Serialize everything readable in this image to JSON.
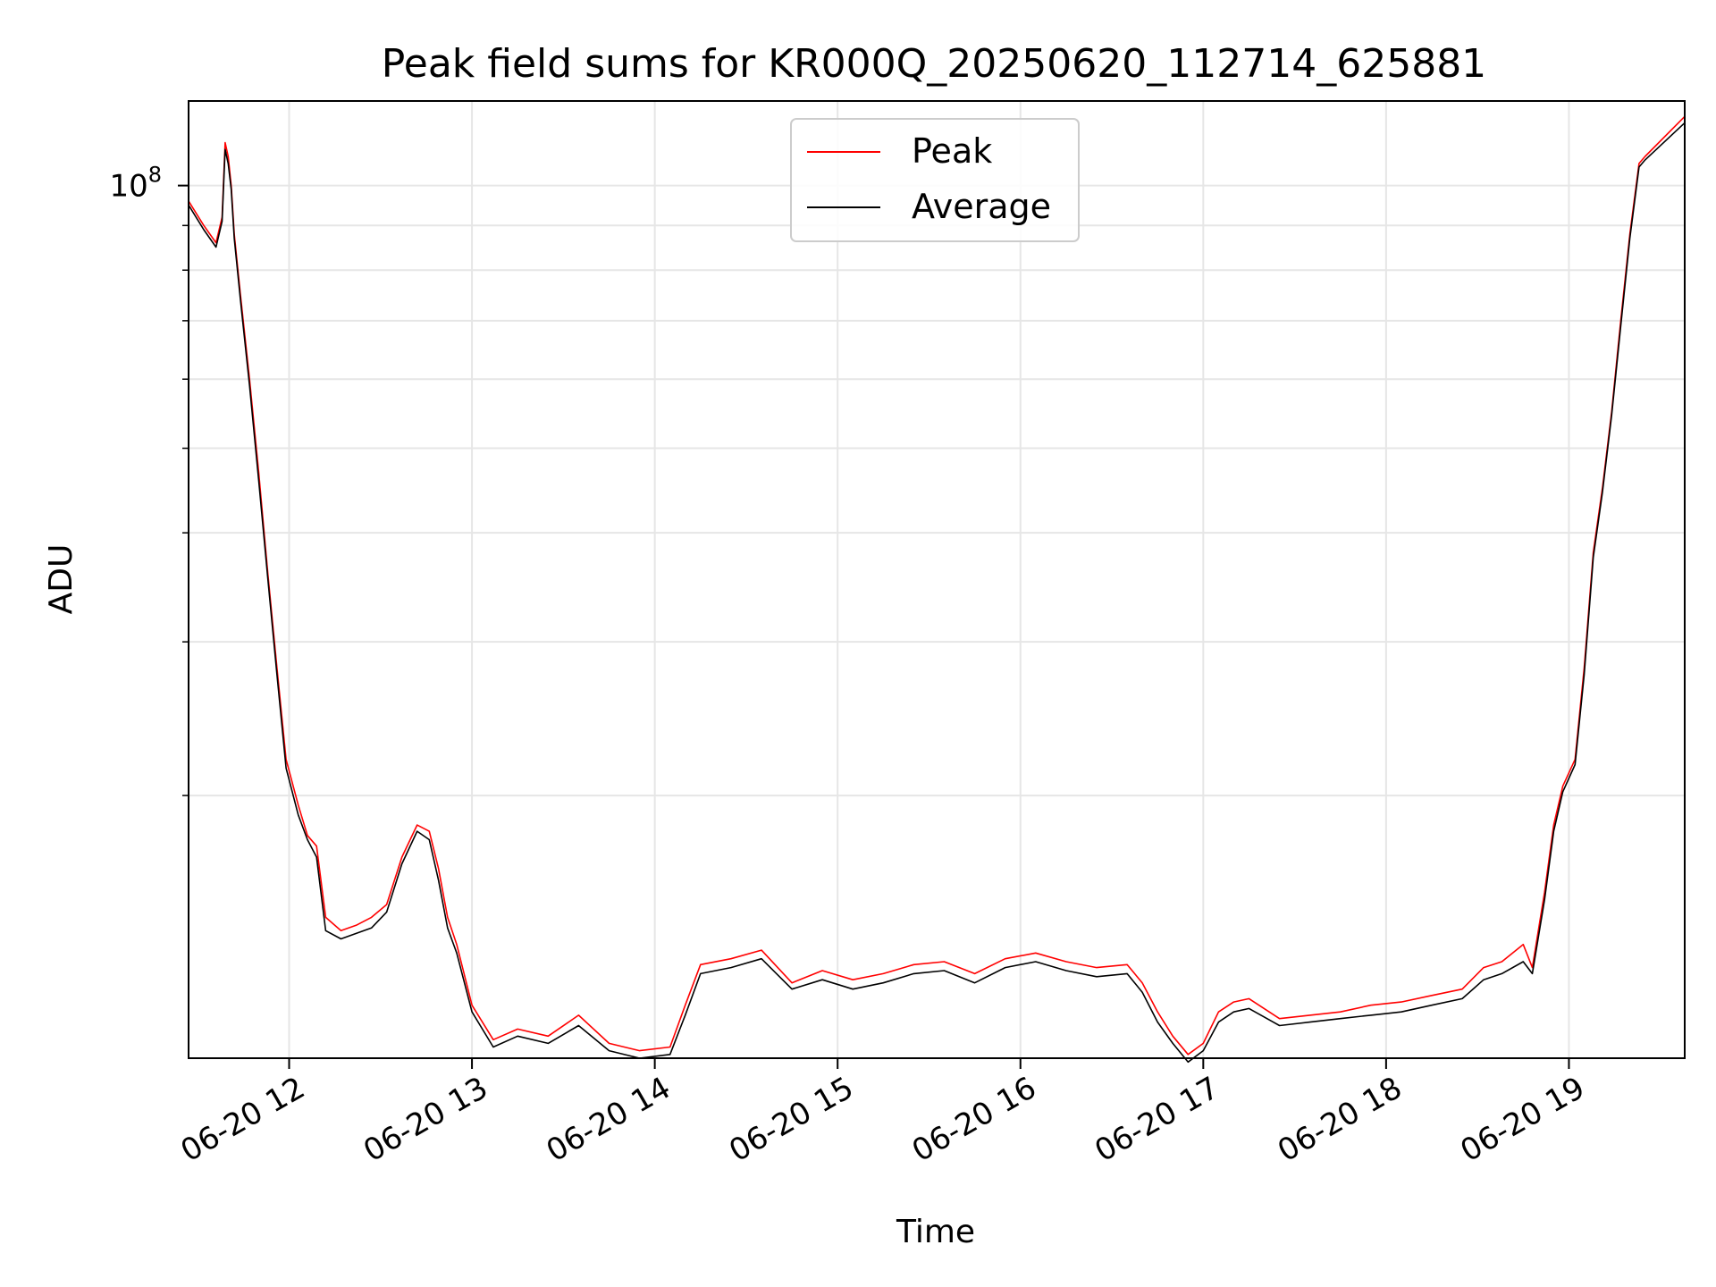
{
  "chart_data": {
    "type": "line",
    "title": "Peak field sums for KR000Q_20250620_112714_625881",
    "xlabel": "Time",
    "ylabel": "ADU",
    "y_scale": "log",
    "ytick_labels": [
      {
        "value": 100000000,
        "base": "10",
        "exponent": "8"
      }
    ],
    "xtick_labels": [
      "06-20 12",
      "06-20 13",
      "06-20 14",
      "06-20 15",
      "06-20 16",
      "06-20 17",
      "06-20 18",
      "06-20 19"
    ],
    "xlim": [
      "2025-06-20 11:27",
      "2025-06-20 19:38"
    ],
    "ylim": [
      10000000,
      125000000
    ],
    "grid": true,
    "legend_position": "top-center",
    "series": [
      {
        "name": "Peak",
        "color": "#ff0000",
        "x": [
          "2025-06-20 11:27",
          "2025-06-20 11:32",
          "2025-06-20 11:36",
          "2025-06-20 11:38",
          "2025-06-20 11:39",
          "2025-06-20 11:40",
          "2025-06-20 11:41",
          "2025-06-20 11:42",
          "2025-06-20 11:44",
          "2025-06-20 11:47",
          "2025-06-20 11:50",
          "2025-06-20 11:53",
          "2025-06-20 11:56",
          "2025-06-20 11:59",
          "2025-06-20 12:03",
          "2025-06-20 12:06",
          "2025-06-20 12:09",
          "2025-06-20 12:12",
          "2025-06-20 12:17",
          "2025-06-20 12:22",
          "2025-06-20 12:27",
          "2025-06-20 12:32",
          "2025-06-20 12:37",
          "2025-06-20 12:42",
          "2025-06-20 12:46",
          "2025-06-20 12:49",
          "2025-06-20 12:52",
          "2025-06-20 12:55",
          "2025-06-20 13:00",
          "2025-06-20 13:07",
          "2025-06-20 13:15",
          "2025-06-20 13:25",
          "2025-06-20 13:35",
          "2025-06-20 13:45",
          "2025-06-20 13:55",
          "2025-06-20 14:05",
          "2025-06-20 14:10",
          "2025-06-20 14:15",
          "2025-06-20 14:25",
          "2025-06-20 14:35",
          "2025-06-20 14:45",
          "2025-06-20 14:55",
          "2025-06-20 15:05",
          "2025-06-20 15:15",
          "2025-06-20 15:25",
          "2025-06-20 15:35",
          "2025-06-20 15:45",
          "2025-06-20 15:55",
          "2025-06-20 16:05",
          "2025-06-20 16:15",
          "2025-06-20 16:25",
          "2025-06-20 16:35",
          "2025-06-20 16:40",
          "2025-06-20 16:45",
          "2025-06-20 16:50",
          "2025-06-20 16:55",
          "2025-06-20 17:00",
          "2025-06-20 17:05",
          "2025-06-20 17:10",
          "2025-06-20 17:15",
          "2025-06-20 17:25",
          "2025-06-20 17:35",
          "2025-06-20 17:45",
          "2025-06-20 17:55",
          "2025-06-20 18:05",
          "2025-06-20 18:15",
          "2025-06-20 18:25",
          "2025-06-20 18:32",
          "2025-06-20 18:38",
          "2025-06-20 18:45",
          "2025-06-20 18:48",
          "2025-06-20 18:52",
          "2025-06-20 18:55",
          "2025-06-20 18:58",
          "2025-06-20 19:02",
          "2025-06-20 19:05",
          "2025-06-20 19:08",
          "2025-06-20 19:11",
          "2025-06-20 19:14",
          "2025-06-20 19:17",
          "2025-06-20 19:20",
          "2025-06-20 19:23",
          "2025-06-20 19:25",
          "2025-06-20 19:38"
        ],
        "values": [
          96000000,
          90000000,
          86000000,
          92000000,
          112000000,
          108000000,
          100000000,
          88000000,
          75000000,
          60000000,
          47000000,
          36000000,
          28000000,
          22000000,
          19500000,
          18000000,
          17500000,
          14500000,
          14000000,
          14200000,
          14500000,
          15000000,
          17000000,
          18500000,
          18200000,
          16500000,
          14500000,
          13500000,
          11500000,
          10500000,
          10800000,
          10600000,
          11200000,
          10400000,
          10200000,
          10300000,
          11500000,
          12800000,
          13000000,
          13300000,
          12200000,
          12600000,
          12300000,
          12500000,
          12800000,
          12900000,
          12500000,
          13000000,
          13200000,
          12900000,
          12700000,
          12800000,
          12200000,
          11300000,
          10600000,
          10100000,
          10400000,
          11300000,
          11600000,
          11700000,
          11100000,
          11200000,
          11300000,
          11500000,
          11600000,
          11800000,
          12000000,
          12700000,
          12900000,
          13500000,
          12700000,
          15500000,
          18500000,
          20500000,
          22000000,
          28000000,
          38000000,
          45000000,
          55000000,
          70000000,
          88000000,
          106000000,
          108000000,
          120000000
        ]
      },
      {
        "name": "Average",
        "color": "#000000",
        "x": [
          "2025-06-20 11:27",
          "2025-06-20 11:32",
          "2025-06-20 11:36",
          "2025-06-20 11:38",
          "2025-06-20 11:39",
          "2025-06-20 11:40",
          "2025-06-20 11:41",
          "2025-06-20 11:42",
          "2025-06-20 11:44",
          "2025-06-20 11:47",
          "2025-06-20 11:50",
          "2025-06-20 11:53",
          "2025-06-20 11:56",
          "2025-06-20 11:59",
          "2025-06-20 12:03",
          "2025-06-20 12:06",
          "2025-06-20 12:09",
          "2025-06-20 12:12",
          "2025-06-20 12:17",
          "2025-06-20 12:22",
          "2025-06-20 12:27",
          "2025-06-20 12:32",
          "2025-06-20 12:37",
          "2025-06-20 12:42",
          "2025-06-20 12:46",
          "2025-06-20 12:49",
          "2025-06-20 12:52",
          "2025-06-20 12:55",
          "2025-06-20 13:00",
          "2025-06-20 13:07",
          "2025-06-20 13:15",
          "2025-06-20 13:25",
          "2025-06-20 13:35",
          "2025-06-20 13:45",
          "2025-06-20 13:55",
          "2025-06-20 14:05",
          "2025-06-20 14:10",
          "2025-06-20 14:15",
          "2025-06-20 14:25",
          "2025-06-20 14:35",
          "2025-06-20 14:45",
          "2025-06-20 14:55",
          "2025-06-20 15:05",
          "2025-06-20 15:15",
          "2025-06-20 15:25",
          "2025-06-20 15:35",
          "2025-06-20 15:45",
          "2025-06-20 15:55",
          "2025-06-20 16:05",
          "2025-06-20 16:15",
          "2025-06-20 16:25",
          "2025-06-20 16:35",
          "2025-06-20 16:40",
          "2025-06-20 16:45",
          "2025-06-20 16:50",
          "2025-06-20 16:55",
          "2025-06-20 17:00",
          "2025-06-20 17:05",
          "2025-06-20 17:10",
          "2025-06-20 17:15",
          "2025-06-20 17:25",
          "2025-06-20 17:35",
          "2025-06-20 17:45",
          "2025-06-20 17:55",
          "2025-06-20 18:05",
          "2025-06-20 18:15",
          "2025-06-20 18:25",
          "2025-06-20 18:32",
          "2025-06-20 18:38",
          "2025-06-20 18:45",
          "2025-06-20 18:48",
          "2025-06-20 18:52",
          "2025-06-20 18:55",
          "2025-06-20 18:58",
          "2025-06-20 19:02",
          "2025-06-20 19:05",
          "2025-06-20 19:08",
          "2025-06-20 19:11",
          "2025-06-20 19:14",
          "2025-06-20 19:17",
          "2025-06-20 19:20",
          "2025-06-20 19:23",
          "2025-06-20 19:25",
          "2025-06-20 19:38"
        ],
        "values": [
          95000000,
          89000000,
          85000000,
          91000000,
          110000000,
          106000000,
          99000000,
          87000000,
          74000000,
          59000000,
          46000000,
          35500000,
          27500000,
          21500000,
          19000000,
          17800000,
          17000000,
          14000000,
          13700000,
          13900000,
          14100000,
          14700000,
          16700000,
          18200000,
          17800000,
          16000000,
          14100000,
          13200000,
          11300000,
          10300000,
          10600000,
          10400000,
          10900000,
          10200000,
          10000000,
          10100000,
          11200000,
          12500000,
          12700000,
          13000000,
          12000000,
          12300000,
          12000000,
          12200000,
          12500000,
          12600000,
          12200000,
          12700000,
          12900000,
          12600000,
          12400000,
          12500000,
          11900000,
          11000000,
          10400000,
          9900000,
          10200000,
          11000000,
          11300000,
          11400000,
          10900000,
          11000000,
          11100000,
          11200000,
          11300000,
          11500000,
          11700000,
          12300000,
          12500000,
          12900000,
          12500000,
          15200000,
          18200000,
          20200000,
          21700000,
          27500000,
          37500000,
          44500000,
          54500000,
          69000000,
          87000000,
          105000000,
          107000000,
          118000000
        ]
      }
    ]
  }
}
